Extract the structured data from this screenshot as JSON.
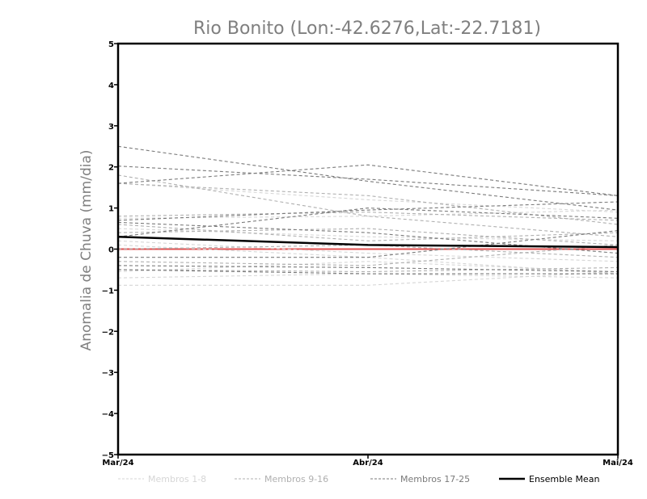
{
  "chart_data": {
    "type": "line",
    "title": "Rio Bonito (Lon:-42.6276,Lat:-22.7181)",
    "xlabel": "",
    "ylabel": "Anomalia de Chuva (mm/dia)",
    "categories": [
      "Mar/24",
      "Abr/24",
      "Mai/24"
    ],
    "ylim": [
      -5,
      5
    ],
    "yticks": [
      -5,
      -4,
      -3,
      -2,
      -1,
      0,
      1,
      2,
      3,
      4,
      5
    ],
    "ytick_labels": [
      "−5",
      "−4",
      "−3",
      "−2",
      "−1",
      "0",
      "1",
      "2",
      "3",
      "4",
      "5"
    ],
    "grid": false,
    "legend_position": "bottom",
    "colors": {
      "members_1_8": "#d6d6d6",
      "members_9_16": "#b0b0b0",
      "members_17_25": "#7a7a7a",
      "ensemble_mean": "#000000",
      "zero_line": "#e05050"
    },
    "legend": [
      {
        "label": "Membros 1-8",
        "group": "members_1_8"
      },
      {
        "label": "Membros 9-16",
        "group": "members_9_16"
      },
      {
        "label": "Membros 17-25",
        "group": "members_17_25"
      },
      {
        "label": "Ensemble Mean",
        "group": "ensemble_mean"
      }
    ],
    "series": [
      {
        "group": "members_1_8",
        "values": [
          1.6,
          1.2,
          0.9
        ]
      },
      {
        "group": "members_1_8",
        "values": [
          0.75,
          0.8,
          0.95
        ]
      },
      {
        "group": "members_1_8",
        "values": [
          0.5,
          0.3,
          0.2
        ]
      },
      {
        "group": "members_1_8",
        "values": [
          0.2,
          -0.1,
          -0.3
        ]
      },
      {
        "group": "members_1_8",
        "values": [
          0.1,
          -0.2,
          -0.6
        ]
      },
      {
        "group": "members_1_8",
        "values": [
          -0.55,
          -0.3,
          -0.55
        ]
      },
      {
        "group": "members_1_8",
        "values": [
          -0.7,
          -0.6,
          -0.7
        ]
      },
      {
        "group": "members_1_8",
        "values": [
          -0.88,
          -0.88,
          -0.55
        ]
      },
      {
        "group": "members_9_16",
        "values": [
          1.8,
          0.8,
          0.3
        ]
      },
      {
        "group": "members_9_16",
        "values": [
          1.6,
          1.3,
          0.6
        ]
      },
      {
        "group": "members_9_16",
        "values": [
          0.8,
          0.9,
          0.7
        ]
      },
      {
        "group": "members_9_16",
        "values": [
          0.6,
          0.2,
          0.4
        ]
      },
      {
        "group": "members_9_16",
        "values": [
          0.4,
          0.5,
          0.1
        ]
      },
      {
        "group": "members_9_16",
        "values": [
          0.0,
          0.1,
          -0.2
        ]
      },
      {
        "group": "members_9_16",
        "values": [
          -0.3,
          -0.4,
          0.1
        ]
      },
      {
        "group": "members_9_16",
        "values": [
          -0.5,
          -0.55,
          -0.45
        ]
      },
      {
        "group": "members_17_25",
        "values": [
          2.5,
          1.65,
          0.95
        ]
      },
      {
        "group": "members_17_25",
        "values": [
          2.02,
          1.7,
          1.3
        ]
      },
      {
        "group": "members_17_25",
        "values": [
          1.6,
          2.05,
          1.3
        ]
      },
      {
        "group": "members_17_25",
        "values": [
          0.7,
          0.95,
          1.15
        ]
      },
      {
        "group": "members_17_25",
        "values": [
          0.3,
          1.0,
          0.75
        ]
      },
      {
        "group": "members_17_25",
        "values": [
          0.65,
          0.4,
          -0.1
        ]
      },
      {
        "group": "members_17_25",
        "values": [
          -0.2,
          -0.2,
          0.45
        ]
      },
      {
        "group": "members_17_25",
        "values": [
          -0.4,
          -0.45,
          -0.55
        ]
      },
      {
        "group": "members_17_25",
        "values": [
          -0.5,
          -0.6,
          -0.6
        ]
      },
      {
        "group": "ensemble_mean",
        "name": "Ensemble Mean",
        "values": [
          0.3,
          0.1,
          0.05
        ]
      }
    ],
    "reference_line": {
      "y": 0,
      "color": "#e05050"
    }
  }
}
